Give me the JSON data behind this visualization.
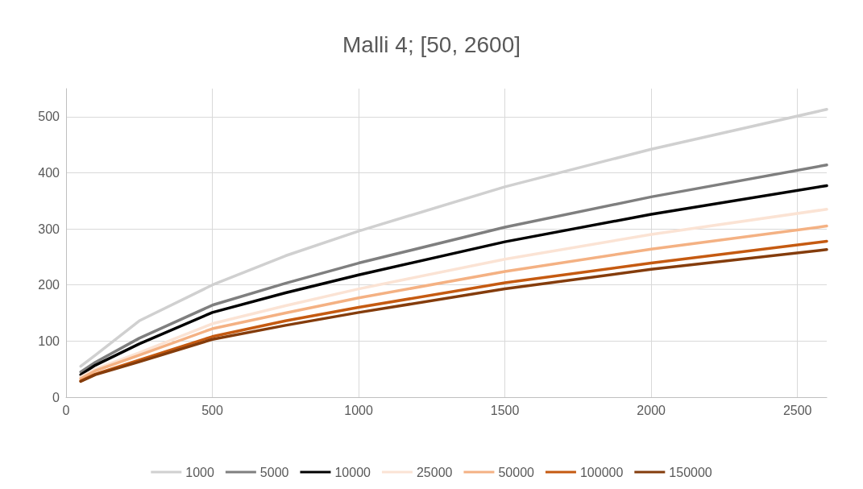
{
  "chart_data": {
    "type": "line",
    "title": "Malli 4; [50, 2600]",
    "x": [
      50,
      100,
      250,
      500,
      750,
      1000,
      1500,
      2000,
      2600
    ],
    "series": [
      {
        "name": "1000",
        "color": "#d0d0d0",
        "values": [
          55,
          75,
          136,
          200,
          252,
          296,
          375,
          442,
          513
        ]
      },
      {
        "name": "5000",
        "color": "#7f7f7f",
        "values": [
          45,
          62,
          105,
          164,
          203,
          239,
          303,
          357,
          414
        ]
      },
      {
        "name": "10000",
        "color": "#000000",
        "values": [
          40,
          57,
          95,
          151,
          186,
          218,
          277,
          326,
          377
        ]
      },
      {
        "name": "25000",
        "color": "#fbe3d4",
        "values": [
          36,
          50,
          79,
          131,
          163,
          193,
          246,
          290,
          335
        ]
      },
      {
        "name": "50000",
        "color": "#f4b183",
        "values": [
          33,
          47,
          75,
          122,
          150,
          177,
          224,
          264,
          305
        ]
      },
      {
        "name": "100000",
        "color": "#c55a11",
        "values": [
          29,
          41,
          66,
          108,
          136,
          160,
          204,
          239,
          278
        ]
      },
      {
        "name": "150000",
        "color": "#843c0c",
        "values": [
          28,
          40,
          63,
          103,
          128,
          151,
          193,
          228,
          263
        ]
      }
    ],
    "xlim": [
      0,
      2600
    ],
    "xticks": [
      0,
      500,
      1000,
      1500,
      2000,
      2500
    ],
    "ylim": [
      0,
      550
    ],
    "yticks": [
      0,
      100,
      200,
      300,
      400,
      500
    ],
    "grid": true,
    "legend": "bottom",
    "marker": "none",
    "line_style": "solid"
  }
}
